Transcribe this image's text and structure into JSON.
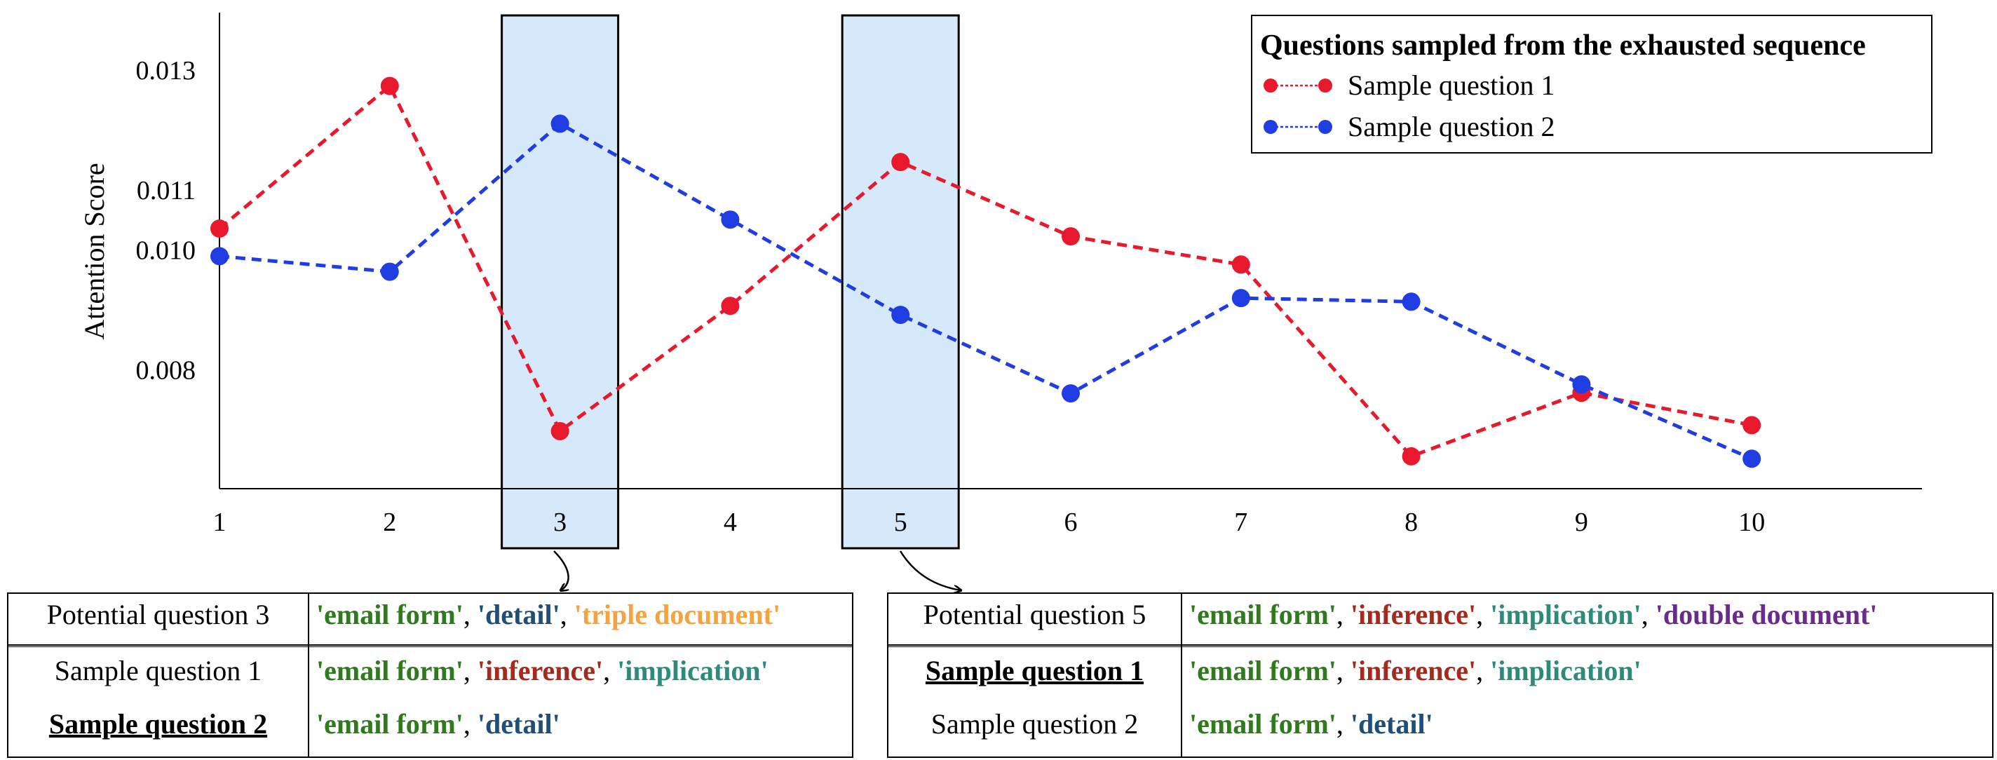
{
  "chart_data": {
    "type": "line",
    "title": "",
    "xlabel": "",
    "ylabel": "Attention Score",
    "x": [
      1,
      2,
      3,
      4,
      5,
      6,
      7,
      8,
      9,
      10
    ],
    "x_tick_labels": [
      "1",
      "2",
      "3",
      "4",
      "5",
      "6",
      "7",
      "8",
      "9",
      "10"
    ],
    "y_ticks": [
      0.013,
      0.011,
      0.01,
      0.008
    ],
    "y_tick_labels": [
      "0.013",
      "0.011",
      "0.010",
      "0.008"
    ],
    "xlim": [
      1,
      11.0
    ],
    "ylim": [
      0.00603,
      0.01395
    ],
    "grid": false,
    "legend": {
      "title": "Questions sampled from the exhausted sequence",
      "placement": "top-right"
    },
    "series": [
      {
        "name": "Sample question 1",
        "color": "#e8192c",
        "style": "dashed",
        "values": [
          0.01037,
          0.01275,
          0.00699,
          0.00908,
          0.01148,
          0.01024,
          0.00977,
          0.00657,
          0.00763,
          0.00709
        ]
      },
      {
        "name": "Sample question 2",
        "color": "#1f3de0",
        "style": "dashed",
        "values": [
          0.00991,
          0.00965,
          0.01212,
          0.01052,
          0.00893,
          0.00762,
          0.00921,
          0.00915,
          0.00777,
          0.00653
        ]
      }
    ],
    "highlight_columns": [
      3,
      5
    ]
  },
  "colors": {
    "highlight_fill": "#d6e9fa",
    "green": "#2e7a1c",
    "blue": "#1f4e79",
    "red": "#a52a1c",
    "teal": "#2e8b7a",
    "orange": "#f4a340",
    "purple": "#6a2c8c"
  },
  "tables": [
    {
      "header": {
        "label": "Potential question 3",
        "tags": [
          {
            "text": "'email form'",
            "color": "green"
          },
          {
            "text": "'detail'",
            "color": "blue"
          },
          {
            "text": "'triple document'",
            "color": "orange"
          }
        ]
      },
      "rows": [
        {
          "label": "Sample question 1",
          "emphasis": false,
          "tags": [
            {
              "text": "'email form'",
              "color": "green"
            },
            {
              "text": "'inference'",
              "color": "red"
            },
            {
              "text": "'implication'",
              "color": "teal"
            }
          ]
        },
        {
          "label": "Sample question 2",
          "emphasis": true,
          "tags": [
            {
              "text": "'email form'",
              "color": "green"
            },
            {
              "text": "'detail'",
              "color": "blue"
            }
          ]
        }
      ]
    },
    {
      "header": {
        "label": "Potential question 5",
        "tags": [
          {
            "text": "'email form'",
            "color": "green"
          },
          {
            "text": "'inference'",
            "color": "red"
          },
          {
            "text": "'implication'",
            "color": "teal"
          },
          {
            "text": "'double document'",
            "color": "purple"
          }
        ]
      },
      "rows": [
        {
          "label": "Sample question 1",
          "emphasis": true,
          "tags": [
            {
              "text": "'email form'",
              "color": "green"
            },
            {
              "text": "'inference'",
              "color": "red"
            },
            {
              "text": "'implication'",
              "color": "teal"
            }
          ]
        },
        {
          "label": "Sample question 2",
          "emphasis": false,
          "tags": [
            {
              "text": "'email form'",
              "color": "green"
            },
            {
              "text": "'detail'",
              "color": "blue"
            }
          ]
        }
      ]
    }
  ]
}
